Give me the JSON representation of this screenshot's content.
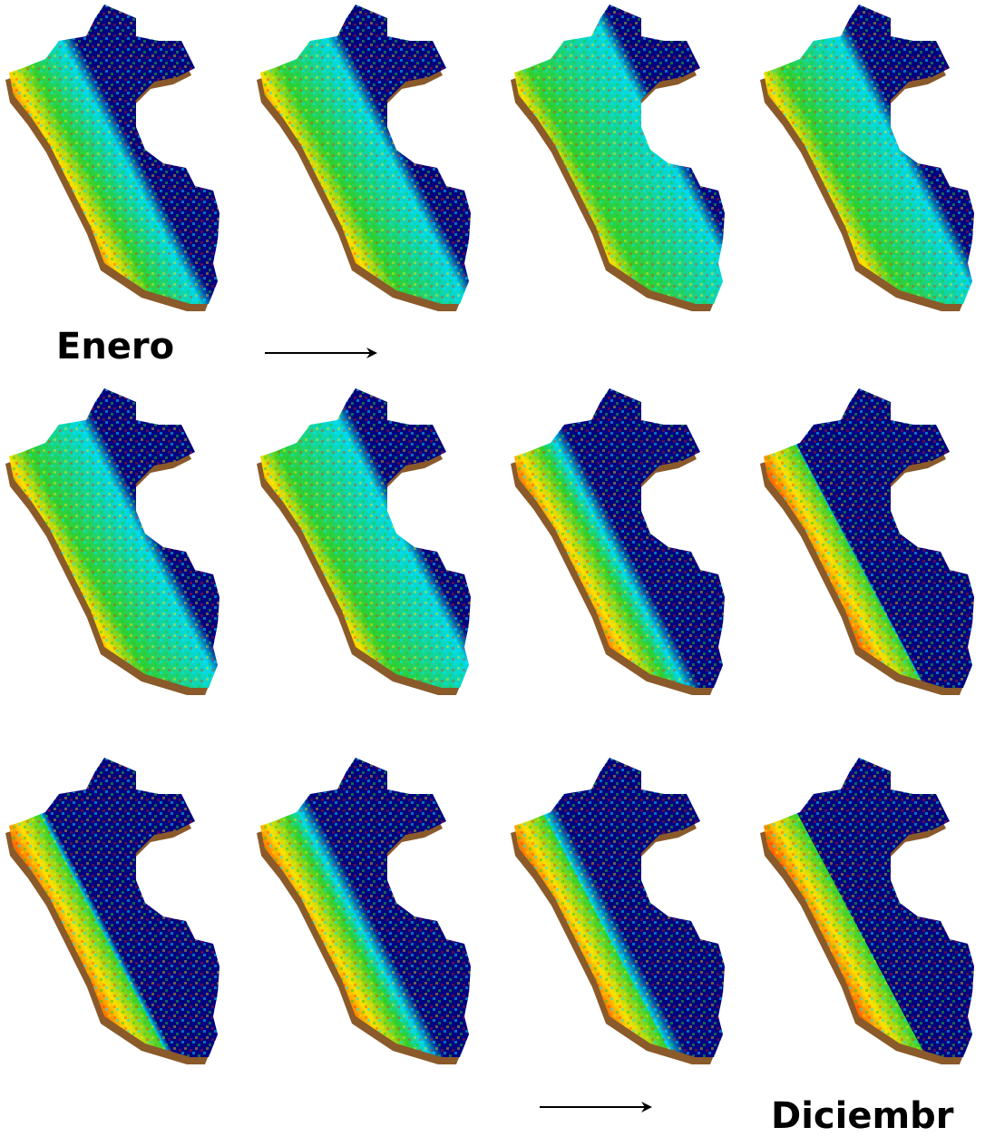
{
  "labels": {
    "start": "Enero",
    "end": "Diciembr"
  }
}
